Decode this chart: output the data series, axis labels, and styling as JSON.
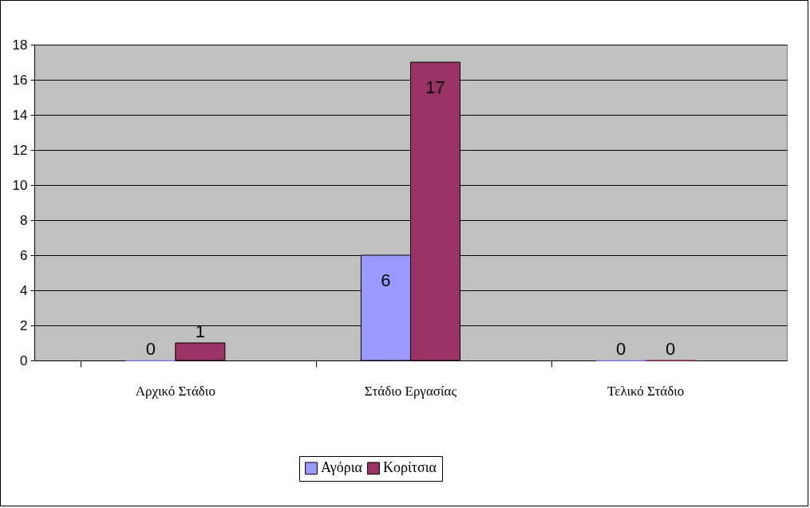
{
  "chart_data": {
    "type": "bar",
    "categories": [
      "Αρχικό Στάδιο",
      "Στάδιο Εργασίας",
      "Τελικό Στάδιο"
    ],
    "series": [
      {
        "name": "Αγόρια",
        "color": "#9999ff",
        "values": [
          0,
          6,
          0
        ]
      },
      {
        "name": "Κορίτσια",
        "color": "#993366",
        "values": [
          1,
          17,
          0
        ]
      }
    ],
    "ylim": [
      0,
      18
    ],
    "yticks": [
      0,
      2,
      4,
      6,
      8,
      10,
      12,
      14,
      16,
      18
    ],
    "grid": "y",
    "legend": "bottom",
    "data_labels": true
  }
}
